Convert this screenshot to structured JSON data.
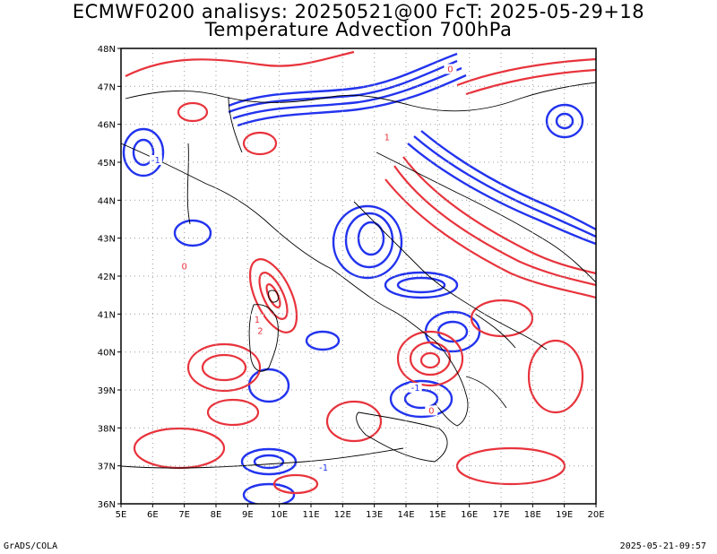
{
  "title_line1": "ECMWF0200 analisys: 20250521@00 FcT: 2025-05-29+18",
  "title_line2": "Temperature Advection 700hPa",
  "footer_left": "GrADS/COLA",
  "footer_right": "2025-05-21-09:57",
  "colors": {
    "positive": "#e8333c",
    "negative": "#2233ee",
    "coast": "#000000",
    "grid": "#999999"
  },
  "map": {
    "lon_range": [
      5,
      20
    ],
    "lat_range": [
      36,
      48
    ],
    "lon_labels": [
      "5E",
      "6E",
      "7E",
      "8E",
      "9E",
      "10E",
      "11E",
      "12E",
      "13E",
      "14E",
      "15E",
      "16E",
      "17E",
      "18E",
      "19E",
      "20E"
    ],
    "lat_labels": [
      "36N",
      "37N",
      "38N",
      "39N",
      "40N",
      "41N",
      "42N",
      "43N",
      "44N",
      "45N",
      "46N",
      "47N",
      "48N"
    ],
    "contour_labels": [
      {
        "text": "1",
        "lon": 9.3,
        "lat": 40.8
      },
      {
        "text": "2",
        "lon": 9.4,
        "lat": 40.5
      },
      {
        "text": "-1",
        "lon": 14.3,
        "lat": 39.0
      },
      {
        "text": "0",
        "lon": 14.8,
        "lat": 38.4
      },
      {
        "text": "-1",
        "lon": 11.4,
        "lat": 36.9
      },
      {
        "text": "1",
        "lon": 13.4,
        "lat": 45.6
      },
      {
        "text": "0",
        "lon": 15.4,
        "lat": 47.4
      },
      {
        "text": "-1",
        "lon": 6.1,
        "lat": 45.0
      },
      {
        "text": "0",
        "lon": 7.0,
        "lat": 42.2
      }
    ]
  }
}
